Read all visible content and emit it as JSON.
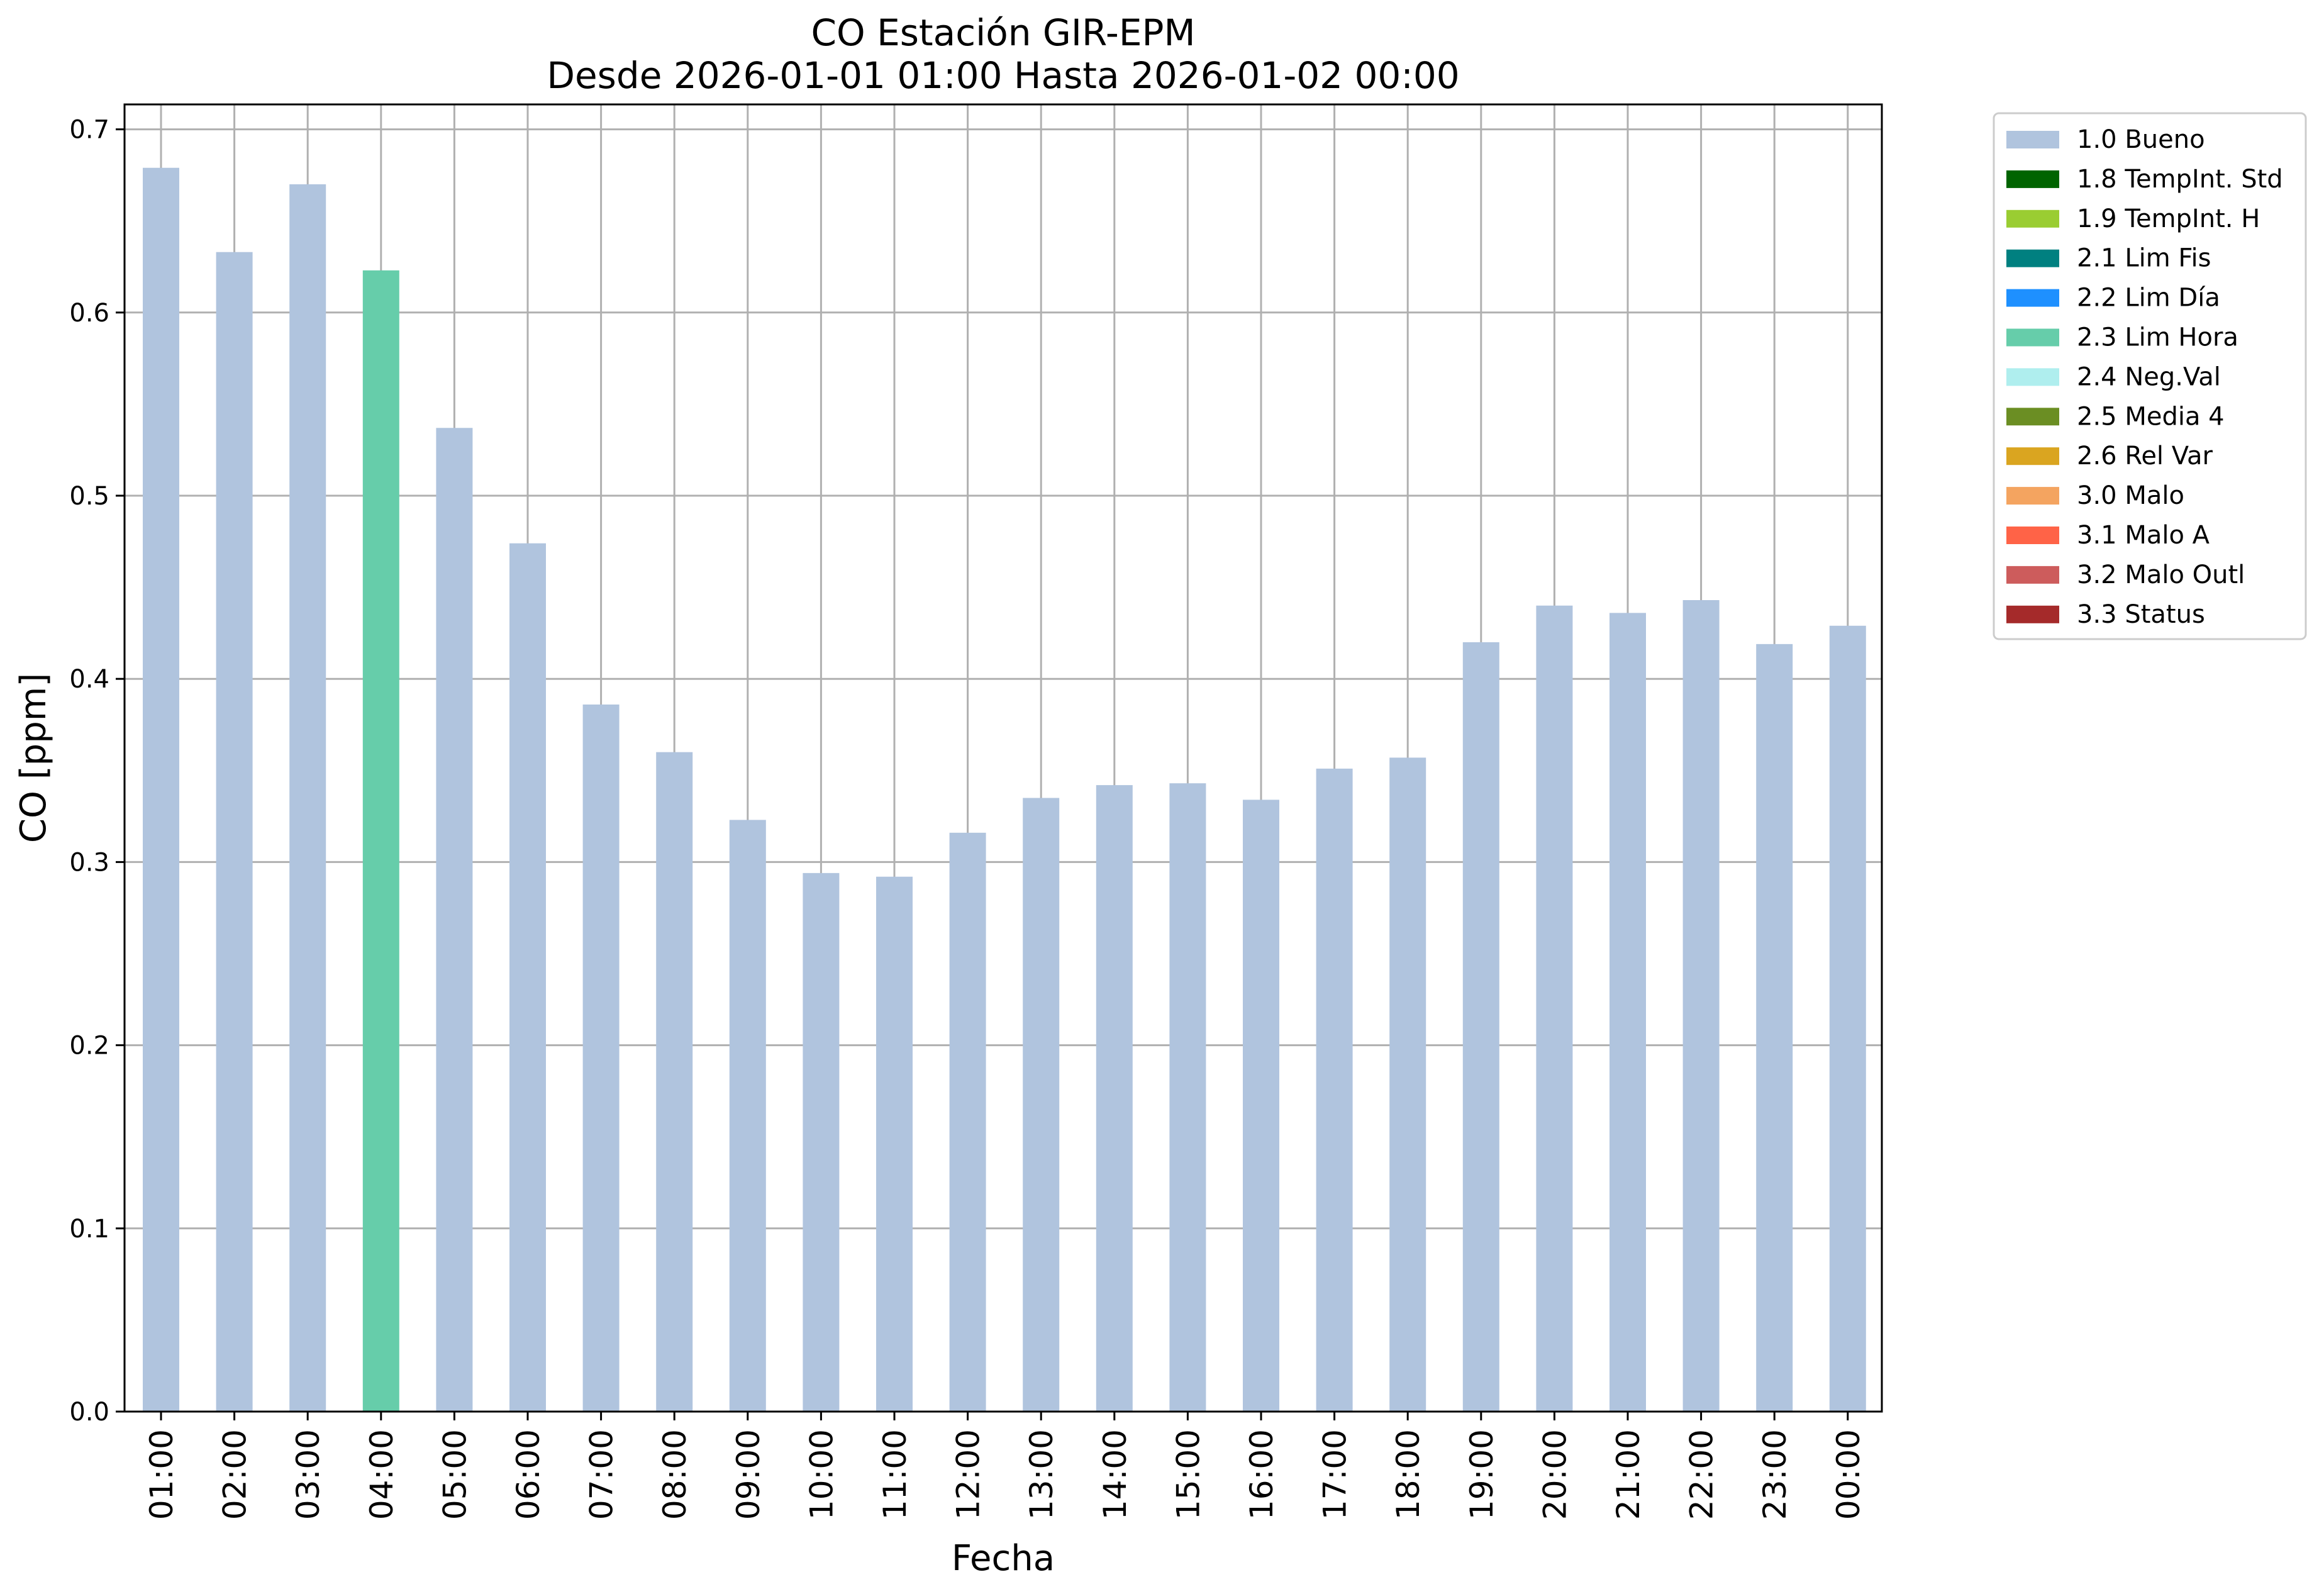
{
  "chart_data": {
    "type": "bar",
    "title": "CO Estación GIR-EPM",
    "subtitle": "Desde 2026-01-01 01:00 Hasta 2026-01-02 00:00",
    "xlabel": "Fecha",
    "ylabel": "CO [ppm]",
    "ylim": [
      0,
      0.7136
    ],
    "yticks": [
      "0.0",
      "0.1",
      "0.2",
      "0.3",
      "0.4",
      "0.5",
      "0.6",
      "0.7"
    ],
    "grid": true,
    "legend_position": "outside-right-top",
    "categories": [
      "01:00",
      "02:00",
      "03:00",
      "04:00",
      "05:00",
      "06:00",
      "07:00",
      "08:00",
      "09:00",
      "10:00",
      "11:00",
      "12:00",
      "13:00",
      "14:00",
      "15:00",
      "16:00",
      "17:00",
      "18:00",
      "19:00",
      "20:00",
      "21:00",
      "22:00",
      "23:00",
      "00:00"
    ],
    "values": [
      0.679,
      0.633,
      0.67,
      0.623,
      0.537,
      0.474,
      0.386,
      0.36,
      0.323,
      0.294,
      0.292,
      0.316,
      0.335,
      0.342,
      0.343,
      0.334,
      0.351,
      0.357,
      0.42,
      0.44,
      0.436,
      0.443,
      0.419,
      0.429
    ],
    "bar_flags": [
      "1.0 Bueno",
      "1.0 Bueno",
      "1.0 Bueno",
      "2.3 Lim Hora",
      "1.0 Bueno",
      "1.0 Bueno",
      "1.0 Bueno",
      "1.0 Bueno",
      "1.0 Bueno",
      "1.0 Bueno",
      "1.0 Bueno",
      "1.0 Bueno",
      "1.0 Bueno",
      "1.0 Bueno",
      "1.0 Bueno",
      "1.0 Bueno",
      "1.0 Bueno",
      "1.0 Bueno",
      "1.0 Bueno",
      "1.0 Bueno",
      "1.0 Bueno",
      "1.0 Bueno",
      "1.0 Bueno",
      "1.0 Bueno"
    ],
    "legend": [
      {
        "label": "1.0 Bueno",
        "color": "#b0c4de"
      },
      {
        "label": "1.8 TempInt. Std",
        "color": "#006400"
      },
      {
        "label": "1.9 TempInt. H",
        "color": "#9acd32"
      },
      {
        "label": "2.1 Lim Fis",
        "color": "#008080"
      },
      {
        "label": "2.2 Lim Día",
        "color": "#1e90ff"
      },
      {
        "label": "2.3 Lim Hora",
        "color": "#66cdaa"
      },
      {
        "label": "2.4 Neg.Val",
        "color": "#afeeee"
      },
      {
        "label": "2.5 Media 4",
        "color": "#6b8e23"
      },
      {
        "label": "2.6 Rel Var",
        "color": "#daa520"
      },
      {
        "label": "3.0 Malo",
        "color": "#f4a460"
      },
      {
        "label": "3.1 Malo A",
        "color": "#ff6347"
      },
      {
        "label": "3.2 Malo Outl",
        "color": "#cd5c5c"
      },
      {
        "label": "3.3 Status",
        "color": "#a52a2a"
      }
    ]
  }
}
